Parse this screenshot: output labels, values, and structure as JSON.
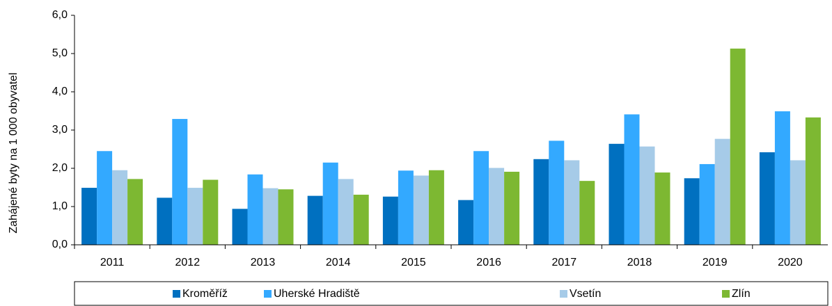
{
  "chart_data": {
    "type": "bar",
    "y_label": "Zahájené byty na 1 000 obyvatel",
    "categories": [
      "2011",
      "2012",
      "2013",
      "2014",
      "2015",
      "2016",
      "2017",
      "2018",
      "2019",
      "2020"
    ],
    "series": [
      {
        "name": "Kroměříž",
        "color": "#0070c0",
        "values": [
          1.49,
          1.23,
          0.94,
          1.28,
          1.26,
          1.17,
          2.24,
          2.64,
          1.74,
          2.42
        ]
      },
      {
        "name": "Uherské Hradiště",
        "color": "#33a9ff",
        "values": [
          2.45,
          3.29,
          1.84,
          2.15,
          1.94,
          2.45,
          2.72,
          3.41,
          2.11,
          3.49
        ]
      },
      {
        "name": "Vsetín",
        "color": "#a6cbe8",
        "values": [
          1.95,
          1.49,
          1.48,
          1.72,
          1.81,
          2.01,
          2.21,
          2.57,
          2.77,
          2.21
        ]
      },
      {
        "name": "Zlín",
        "color": "#7db832",
        "values": [
          1.72,
          1.7,
          1.45,
          1.31,
          1.95,
          1.91,
          1.67,
          1.89,
          5.13,
          3.33
        ]
      }
    ],
    "ylim": [
      0,
      6
    ],
    "yticks": [
      {
        "value": 0,
        "label": "0,0"
      },
      {
        "value": 1,
        "label": "1,0"
      },
      {
        "value": 2,
        "label": "2,0"
      },
      {
        "value": 3,
        "label": "3,0"
      },
      {
        "value": 4,
        "label": "4,0"
      },
      {
        "value": 5,
        "label": "5,0"
      },
      {
        "value": 6,
        "label": "6,0"
      }
    ],
    "legend": "bottom"
  }
}
